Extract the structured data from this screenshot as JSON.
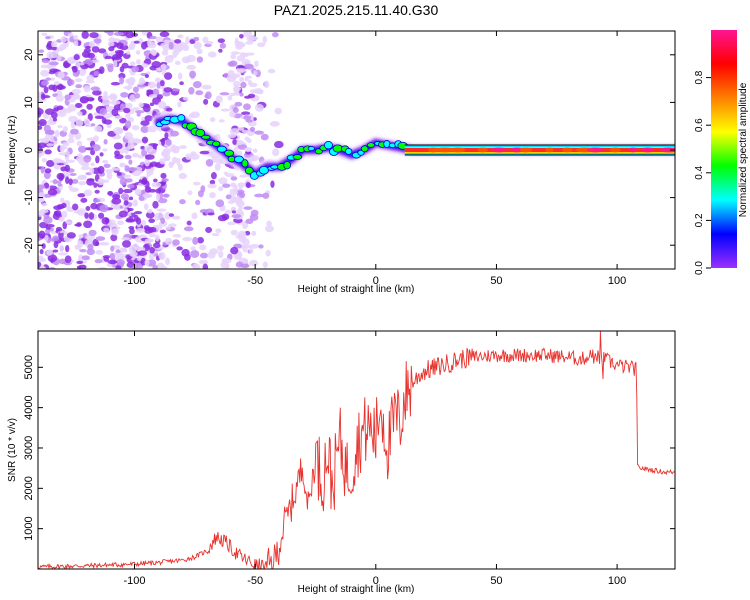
{
  "title": "PAZ1.2025.215.11.40.G30",
  "chart_data": [
    {
      "type": "heatmap",
      "xlabel": "Height of straight line (km)",
      "ylabel": "Frequency (Hz)",
      "xlim": [
        -140,
        124
      ],
      "ylim": [
        -25,
        25
      ],
      "xticks": [
        -100,
        -50,
        0,
        50,
        100
      ],
      "yticks": [
        -20,
        -10,
        0,
        10,
        20
      ],
      "colorbar": {
        "label": "Normalized spectral amplitude",
        "range": [
          0,
          1
        ],
        "ticks": [
          "0.0",
          "0.2",
          "0.4",
          "0.6",
          "0.8"
        ],
        "tick_values": [
          0.0,
          0.2,
          0.4,
          0.6,
          0.8
        ],
        "colors": [
          "#ffffff",
          "#e8c8ff",
          "#9b30ff",
          "#0000ff",
          "#00ffff",
          "#00ff00",
          "#ffff00",
          "#ff8000",
          "#ff0000",
          "#ff1493"
        ]
      },
      "ridge": {
        "x": [
          -90,
          -85,
          -80,
          -75,
          -70,
          -65,
          -60,
          -55,
          -50,
          -45,
          -40,
          -35,
          -30,
          -25,
          -20,
          -15,
          -10,
          -5,
          0,
          5,
          10,
          15,
          124
        ],
        "frequency": [
          6,
          6.5,
          6,
          4,
          2.5,
          0.5,
          -1.5,
          -3,
          -5,
          -3.5,
          -3.5,
          -2,
          0,
          0,
          0.5,
          0,
          -1,
          0,
          1.5,
          1,
          0.5,
          0,
          0
        ]
      },
      "grid": false,
      "legend": "colorbar-right"
    },
    {
      "type": "line",
      "xlabel": "Height of straight line (km)",
      "ylabel": "SNR (10 * v/v)",
      "xlim": [
        -140,
        124
      ],
      "ylim": [
        0,
        5900
      ],
      "xticks": [
        -100,
        -50,
        0,
        50,
        100
      ],
      "yticks": [
        1000,
        2000,
        3000,
        4000,
        5000
      ],
      "color": "#e8322d",
      "series": [
        {
          "x": [
            -140,
            -120,
            -100,
            -90,
            -80,
            -75,
            -70,
            -66,
            -62,
            -58,
            -55,
            -50,
            -45,
            -42,
            -40,
            -38,
            -36,
            -33,
            -30,
            -28,
            -25,
            -22,
            -20,
            -18,
            -15,
            -12,
            -10,
            -8,
            -5,
            -3,
            0,
            2,
            5,
            8,
            10,
            12,
            15,
            18,
            20,
            25,
            30,
            35,
            40,
            50,
            60,
            70,
            80,
            85,
            90,
            95,
            100,
            105,
            108,
            108.5,
            110,
            115,
            120,
            124
          ],
          "y": [
            50,
            80,
            120,
            160,
            220,
            300,
            450,
            800,
            650,
            400,
            260,
            100,
            50,
            200,
            600,
            1100,
            1400,
            2000,
            2600,
            1500,
            2800,
            2200,
            3000,
            2000,
            3200,
            2400,
            2500,
            3100,
            3400,
            3500,
            3300,
            4100,
            3000,
            3800,
            3600,
            4300,
            4600,
            4800,
            4900,
            5000,
            5100,
            5200,
            5250,
            5300,
            5300,
            5300,
            5250,
            5200,
            5300,
            5200,
            5050,
            5000,
            4950,
            2550,
            2500,
            2450,
            2400,
            2400
          ]
        }
      ],
      "grid": false,
      "legend": "none"
    }
  ]
}
